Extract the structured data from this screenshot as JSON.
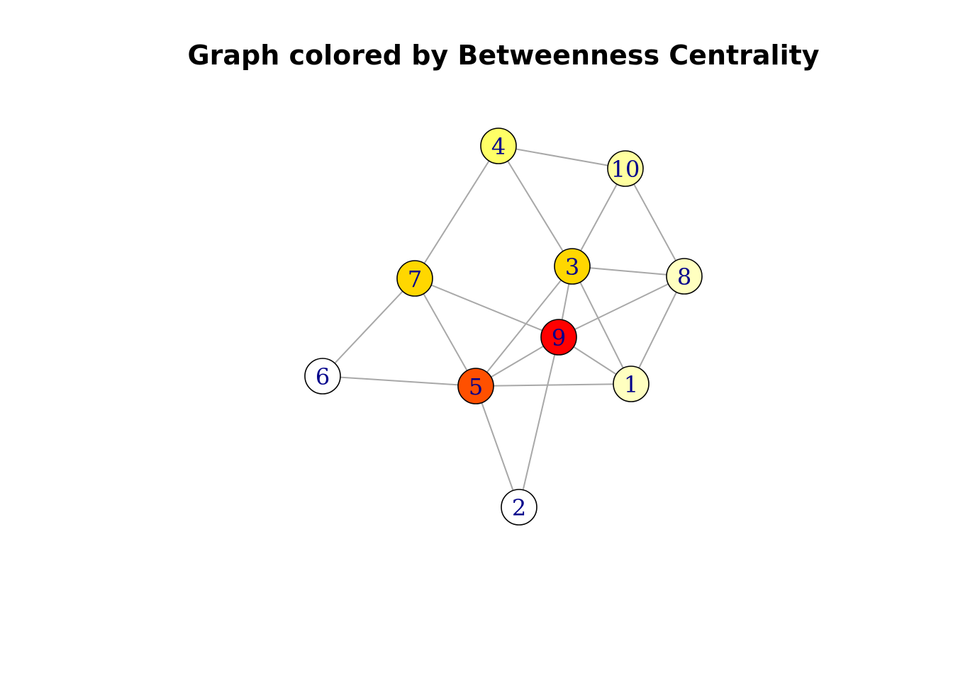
{
  "title": "Graph colored by Betweenness Centrality",
  "nodes": [
    {
      "id": "1",
      "label": "1",
      "color": "#ffffc0"
    },
    {
      "id": "2",
      "label": "2",
      "color": "#ffffff"
    },
    {
      "id": "3",
      "label": "3",
      "color": "#ffd700"
    },
    {
      "id": "4",
      "label": "4",
      "color": "#ffff66"
    },
    {
      "id": "5",
      "label": "5",
      "color": "#ff5000"
    },
    {
      "id": "6",
      "label": "6",
      "color": "#ffffff"
    },
    {
      "id": "7",
      "label": "7",
      "color": "#ffd700"
    },
    {
      "id": "8",
      "label": "8",
      "color": "#ffffc0"
    },
    {
      "id": "9",
      "label": "9",
      "color": "#ff0000"
    },
    {
      "id": "10",
      "label": "10",
      "color": "#ffffa0"
    }
  ],
  "edges": [
    [
      "4",
      "10"
    ],
    [
      "4",
      "7"
    ],
    [
      "4",
      "3"
    ],
    [
      "10",
      "3"
    ],
    [
      "10",
      "8"
    ],
    [
      "3",
      "8"
    ],
    [
      "3",
      "9"
    ],
    [
      "3",
      "5"
    ],
    [
      "3",
      "1"
    ],
    [
      "7",
      "9"
    ],
    [
      "7",
      "6"
    ],
    [
      "7",
      "5"
    ],
    [
      "8",
      "9"
    ],
    [
      "8",
      "1"
    ],
    [
      "9",
      "5"
    ],
    [
      "9",
      "1"
    ],
    [
      "9",
      "2"
    ],
    [
      "6",
      "5"
    ],
    [
      "5",
      "1"
    ],
    [
      "5",
      "2"
    ]
  ]
}
